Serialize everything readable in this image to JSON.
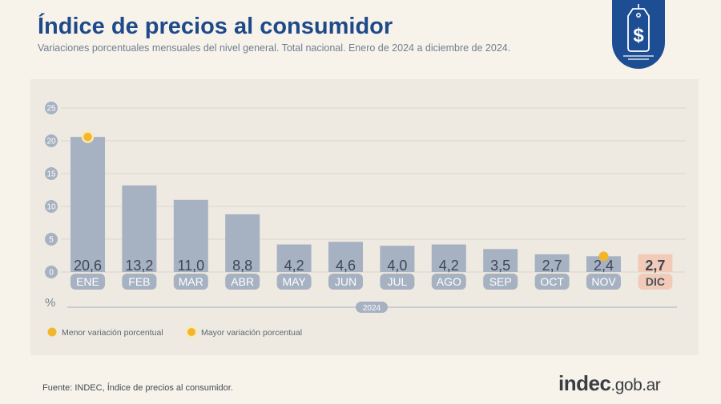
{
  "header": {
    "title": "Índice de precios al consumidor",
    "subtitle": "Variaciones porcentuales mensuales del nivel general. Total nacional. Enero de 2024 a diciembre de 2024."
  },
  "badge": {
    "icon": "price-tag-dollar-icon",
    "background": "#1d4e94"
  },
  "chart_data": {
    "type": "bar",
    "categories": [
      "ENE",
      "FEB",
      "MAR",
      "ABR",
      "MAY",
      "JUN",
      "JUL",
      "AGO",
      "SEP",
      "OCT",
      "NOV",
      "DIC"
    ],
    "values": [
      20.6,
      13.2,
      11.0,
      8.8,
      4.2,
      4.6,
      4.0,
      4.2,
      3.5,
      2.7,
      2.4,
      2.7
    ],
    "value_labels": [
      "20,6",
      "13,2",
      "11,0",
      "8,8",
      "4,2",
      "4,6",
      "4,0",
      "4,2",
      "3,5",
      "2,7",
      "2,4",
      "2,7"
    ],
    "yticks": [
      "0",
      "5",
      "10",
      "15",
      "20",
      "25"
    ],
    "ytick_values": [
      0,
      5,
      10,
      15,
      20,
      25
    ],
    "ylim": [
      0,
      25
    ],
    "ylabel": "%",
    "year_label": "2024",
    "grid": true,
    "highlight_index": 11,
    "bar_color": "#a6b1c2",
    "highlight_color": "#f1cbb7",
    "marker_color": "#f3b62b",
    "markers": [
      {
        "index": 0,
        "kind": "max"
      },
      {
        "index": 10,
        "kind": "min"
      }
    ],
    "legend": [
      {
        "kind": "min",
        "label": "Menor variación porcentual"
      },
      {
        "kind": "max",
        "label": "Mayor variación porcentual"
      }
    ]
  },
  "footer": {
    "source": "Fuente: INDEC, Índice de precios al consumidor.",
    "brand_strong": "indec",
    "brand_light": ".gob.ar"
  }
}
